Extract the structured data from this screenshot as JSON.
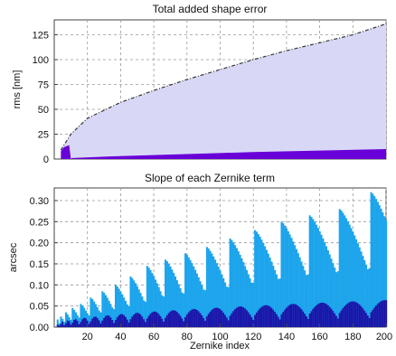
{
  "chart_data": [
    {
      "type": "area",
      "title": "Total added shape error",
      "xlabel": "",
      "ylabel": "rms [nm]",
      "xlim": [
        0,
        200
      ],
      "ylim": [
        0,
        140
      ],
      "x_ticks": [
        20,
        40,
        60,
        80,
        100,
        120,
        140,
        160,
        180,
        200
      ],
      "y_ticks": [
        0,
        25,
        50,
        75,
        100,
        125
      ],
      "grid": true,
      "colors": {
        "cumulative_fill": "#d8d8f6",
        "cumulative_line": "#333333",
        "term_fill": "#6a00d8"
      },
      "series": [
        {
          "style": "dash-dot line with light fill",
          "x": [
            4,
            10,
            20,
            40,
            60,
            80,
            100,
            120,
            140,
            160,
            180,
            200
          ],
          "values": [
            9,
            25,
            41,
            57,
            69,
            80,
            90,
            100,
            109,
            117,
            125,
            136
          ]
        },
        {
          "style": "solid dark fill",
          "x": [
            4,
            6,
            9,
            10,
            11,
            40,
            80,
            120,
            160,
            200
          ],
          "values": [
            8,
            12,
            14,
            0.5,
            1,
            3,
            5,
            7,
            8.5,
            10
          ]
        }
      ]
    },
    {
      "type": "bar",
      "title": "Slope of each Zernike term",
      "xlabel": "Zernike index",
      "ylabel": "arcsec",
      "xlim": [
        0,
        200
      ],
      "ylim": [
        0,
        0.33
      ],
      "x_ticks": [
        20,
        40,
        60,
        80,
        100,
        120,
        140,
        160,
        180,
        200
      ],
      "y_ticks": [
        0.0,
        0.05,
        0.1,
        0.15,
        0.2,
        0.25,
        0.3
      ],
      "tick_labels_y": [
        "0.00",
        "0.05",
        "0.10",
        "0.15",
        "0.20",
        "0.25",
        "0.30"
      ],
      "grid": true,
      "colors": {
        "light": "#1ca4ec",
        "dark": "#1c14a8"
      },
      "model": {
        "description": "bars per index; radial orders n=1..19, values rise with order",
        "peak_light": [
          0.018,
          0.025,
          0.035,
          0.045,
          0.055,
          0.07,
          0.085,
          0.1,
          0.12,
          0.145,
          0.16,
          0.175,
          0.19,
          0.21,
          0.23,
          0.25,
          0.265,
          0.28,
          0.32
        ],
        "max_dark": [
          0.01,
          0.013,
          0.016,
          0.019,
          0.022,
          0.025,
          0.028,
          0.031,
          0.034,
          0.037,
          0.04,
          0.043,
          0.046,
          0.049,
          0.052,
          0.055,
          0.058,
          0.061,
          0.064
        ]
      }
    }
  ]
}
